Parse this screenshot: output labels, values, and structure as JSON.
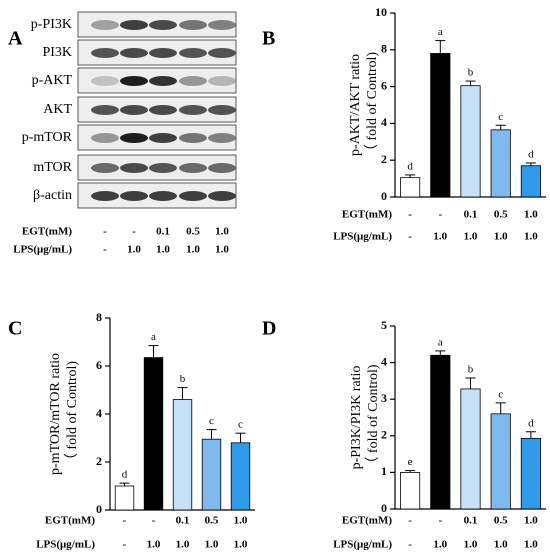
{
  "blot": {
    "label": "A",
    "rows": [
      "p-PI3K",
      "PI3K",
      "p-AKT",
      "AKT",
      "p-mTOR",
      "mTOR",
      "β-actin"
    ],
    "treatments": [
      {
        "name": "EGT(mM)",
        "levels": [
          "-",
          "-",
          "0.1",
          "0.5",
          "1.0"
        ]
      },
      {
        "name": "LPS(μg/mL)",
        "levels": [
          "-",
          "1.0",
          "1.0",
          "1.0",
          "1.0"
        ]
      }
    ]
  },
  "chart_data": [
    {
      "type": "bar",
      "label": "B",
      "ylabel": [
        "p-AKT/AKT ratio",
        "（ fold of Control)"
      ],
      "values": [
        1.05,
        7.8,
        6.05,
        3.65,
        1.7
      ],
      "errors": [
        0.15,
        0.7,
        0.25,
        0.25,
        0.15
      ],
      "annotations": [
        "d",
        "a",
        "b",
        "c",
        "d"
      ],
      "colors": [
        "#ffffff",
        "#000000",
        "#c6e0f7",
        "#7fb9ee",
        "#2f9ae8"
      ],
      "ylim": [
        0,
        10
      ],
      "yticks": [
        0,
        2,
        4,
        6,
        8,
        10
      ],
      "treatments": [
        {
          "name": "EGT(mM)",
          "levels": [
            "-",
            "-",
            "0.1",
            "0.5",
            "1.0"
          ]
        },
        {
          "name": "LPS(μg/mL)",
          "levels": [
            "-",
            "1.0",
            "1.0",
            "1.0",
            "1.0"
          ]
        }
      ]
    },
    {
      "type": "bar",
      "label": "C",
      "ylabel": [
        "p-mTOR/mTOR ratio",
        "（ fold of Control)"
      ],
      "values": [
        1.0,
        6.35,
        4.6,
        2.95,
        2.8
      ],
      "errors": [
        0.12,
        0.5,
        0.5,
        0.4,
        0.4
      ],
      "annotations": [
        "d",
        "a",
        "b",
        "c",
        "c"
      ],
      "colors": [
        "#ffffff",
        "#000000",
        "#c6e0f7",
        "#7fb9ee",
        "#2f9ae8"
      ],
      "ylim": [
        0,
        8
      ],
      "yticks": [
        0,
        2,
        4,
        6,
        8
      ],
      "treatments": [
        {
          "name": "EGT(mM)",
          "levels": [
            "-",
            "-",
            "0.1",
            "0.5",
            "1.0"
          ]
        },
        {
          "name": "LPS(μg/mL)",
          "levels": [
            "-",
            "1.0",
            "1.0",
            "1.0",
            "1.0"
          ]
        }
      ]
    },
    {
      "type": "bar",
      "label": "D",
      "ylabel": [
        "p-PI3K/PI3K ratio",
        "（ fold of Control)"
      ],
      "values": [
        1.0,
        4.2,
        3.28,
        2.6,
        1.93
      ],
      "errors": [
        0.05,
        0.12,
        0.3,
        0.3,
        0.18
      ],
      "annotations": [
        "e",
        "a",
        "b",
        "c",
        "d"
      ],
      "colors": [
        "#ffffff",
        "#000000",
        "#c6e0f7",
        "#7fb9ee",
        "#2f9ae8"
      ],
      "ylim": [
        0,
        5
      ],
      "yticks": [
        0,
        1,
        2,
        3,
        4,
        5
      ],
      "treatments": [
        {
          "name": "EGT(mM)",
          "levels": [
            "-",
            "-",
            "0.1",
            "0.5",
            "1.0"
          ]
        },
        {
          "name": "LPS(μg/mL)",
          "levels": [
            "-",
            "1.0",
            "1.0",
            "1.0",
            "1.0"
          ]
        }
      ]
    }
  ]
}
